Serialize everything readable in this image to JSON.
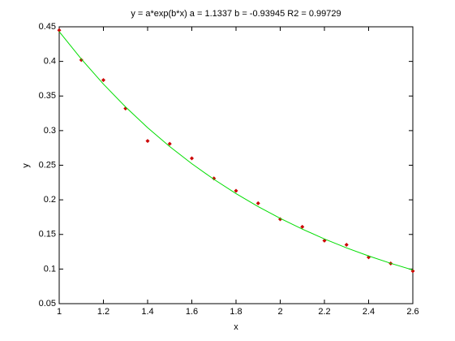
{
  "chart_data": {
    "type": "scatter",
    "title": "y = a*exp(b*x)      a = 1.1337      b = -0.93945    R2 =  0.99729",
    "xlabel": "x",
    "ylabel": "y",
    "xlim": [
      1,
      2.6
    ],
    "xticks": [
      1,
      1.2,
      1.4,
      1.6,
      1.8,
      2,
      2.2,
      2.4,
      2.6
    ],
    "ylim": [
      0.05,
      0.45
    ],
    "yticks": [
      0.05,
      0.1,
      0.15,
      0.2,
      0.25,
      0.3,
      0.35,
      0.4,
      0.45
    ],
    "series": [
      {
        "mode": "markers",
        "color": "#cc0000",
        "x": [
          1,
          1.1,
          1.2,
          1.3,
          1.4,
          1.5,
          1.6,
          1.7,
          1.8,
          1.9,
          2,
          2.1,
          2.2,
          2.3,
          2.4,
          2.5,
          2.6
        ],
        "values": [
          0.445,
          0.402,
          0.373,
          0.332,
          0.285,
          0.281,
          0.26,
          0.231,
          0.213,
          0.195,
          0.172,
          0.161,
          0.141,
          0.135,
          0.117,
          0.108,
          0.097
        ]
      },
      {
        "mode": "line",
        "color": "#00dd00",
        "x": [
          1,
          1.1,
          1.2,
          1.3,
          1.4,
          1.5,
          1.6,
          1.7,
          1.8,
          1.9,
          2,
          2.1,
          2.2,
          2.3,
          2.4,
          2.5,
          2.6
        ],
        "values": [
          0.4431,
          0.4034,
          0.3672,
          0.3343,
          0.3043,
          0.277,
          0.2522,
          0.2296,
          0.209,
          0.1902,
          0.1732,
          0.1577,
          0.1435,
          0.1306,
          0.1189,
          0.1083,
          0.0986
        ]
      }
    ]
  }
}
